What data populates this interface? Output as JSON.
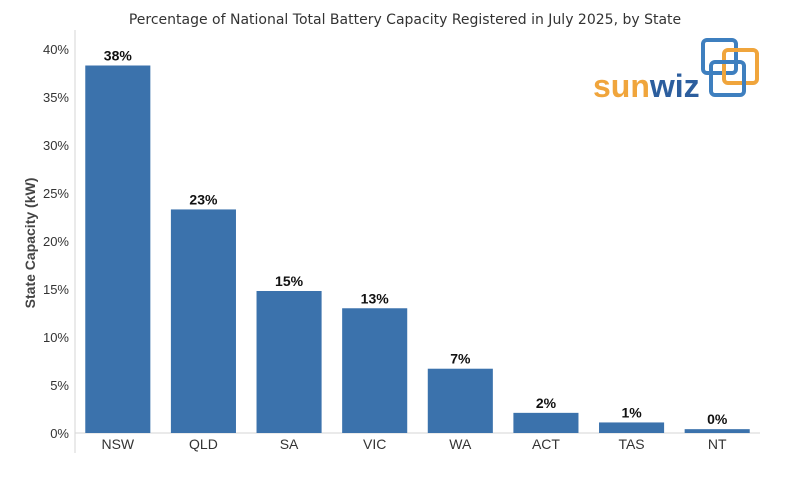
{
  "chart_data": {
    "type": "bar",
    "title": "Percentage of National Total Battery Capacity Registered in July 2025, by State",
    "ylabel": "State Capacity (kW)",
    "xlabel": "",
    "categories": [
      "NSW",
      "QLD",
      "SA",
      "VIC",
      "WA",
      "ACT",
      "TAS",
      "NT"
    ],
    "values": [
      38.3,
      23.3,
      14.8,
      13.0,
      6.7,
      2.1,
      1.1,
      0.4
    ],
    "data_labels": [
      "38%",
      "23%",
      "15%",
      "13%",
      "7%",
      "2%",
      "1%",
      "0%"
    ],
    "yticks": [
      0,
      5,
      10,
      15,
      20,
      25,
      30,
      35,
      40
    ],
    "ytick_labels": [
      "0%",
      "5%",
      "10%",
      "15%",
      "20%",
      "25%",
      "30%",
      "35%",
      "40%"
    ],
    "ylim": [
      0,
      42
    ],
    "grid": false,
    "bar_color": "#3B72AC"
  },
  "logo": {
    "text_sun": "sun",
    "text_wiz": "wiz",
    "color_sun": "#F0A53C",
    "color_wiz": "#2C5E9E",
    "squares_orange": "#F0A53C",
    "squares_blue": "#3E7FBF"
  }
}
